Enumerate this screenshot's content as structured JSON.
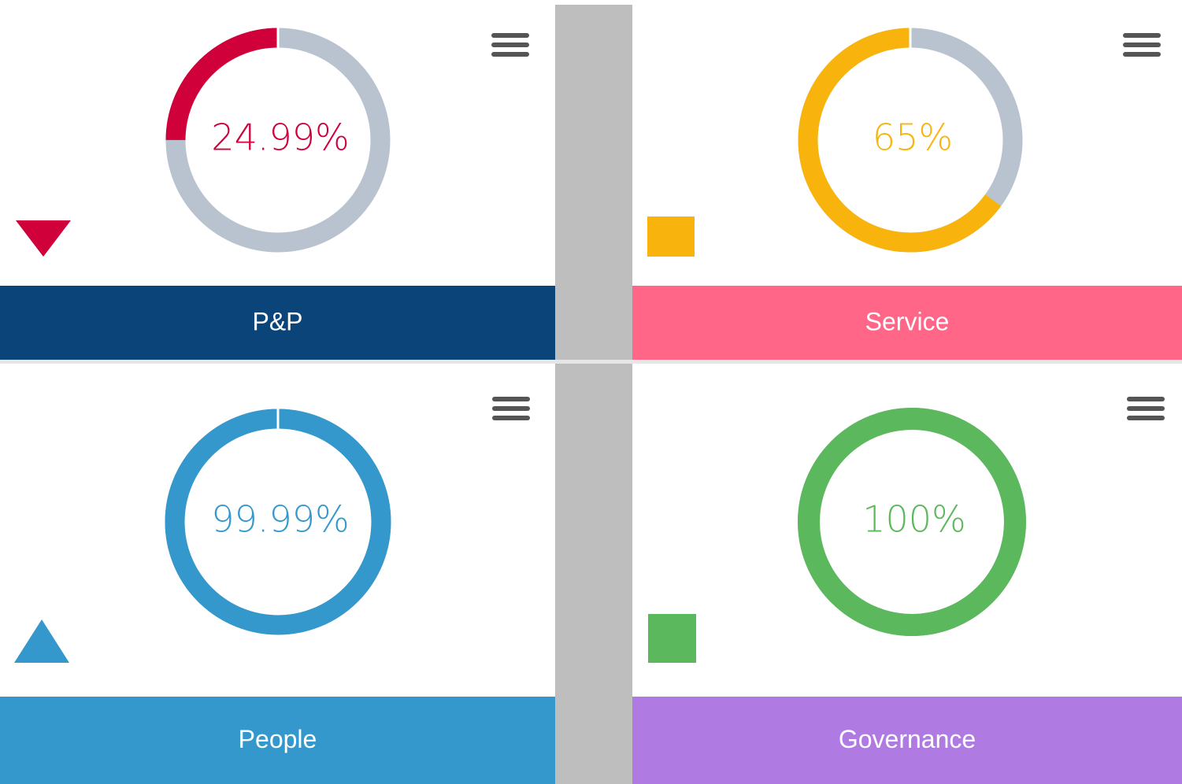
{
  "chart_data": [
    {
      "type": "donut",
      "title": "P&P",
      "values": [
        24.99
      ],
      "value_labels": [
        "24.99%"
      ],
      "ylim": [
        0,
        100
      ],
      "color": "#d0003a",
      "track_color": "#b9c3cf",
      "banner_color": "#0a4478",
      "indicator": "down"
    },
    {
      "type": "donut",
      "title": "Service",
      "values": [
        65
      ],
      "value_labels": [
        "65%"
      ],
      "ylim": [
        0,
        100
      ],
      "color": "#f8b40c",
      "track_color": "#b9c3cf",
      "banner_color": "#ff6688",
      "indicator": "flat"
    },
    {
      "type": "donut",
      "title": "People",
      "values": [
        99.99
      ],
      "value_labels": [
        "99.99%"
      ],
      "ylim": [
        0,
        100
      ],
      "color": "#3498cc",
      "track_color": "#b9c3cf",
      "banner_color": "#3498cc",
      "indicator": "up"
    },
    {
      "type": "donut",
      "title": "Governance",
      "values": [
        100
      ],
      "value_labels": [
        "100%"
      ],
      "ylim": [
        0,
        100
      ],
      "color": "#5cb85c",
      "track_color": "#b9c3cf",
      "banner_color": "#b07ae3",
      "indicator": "flat"
    }
  ]
}
